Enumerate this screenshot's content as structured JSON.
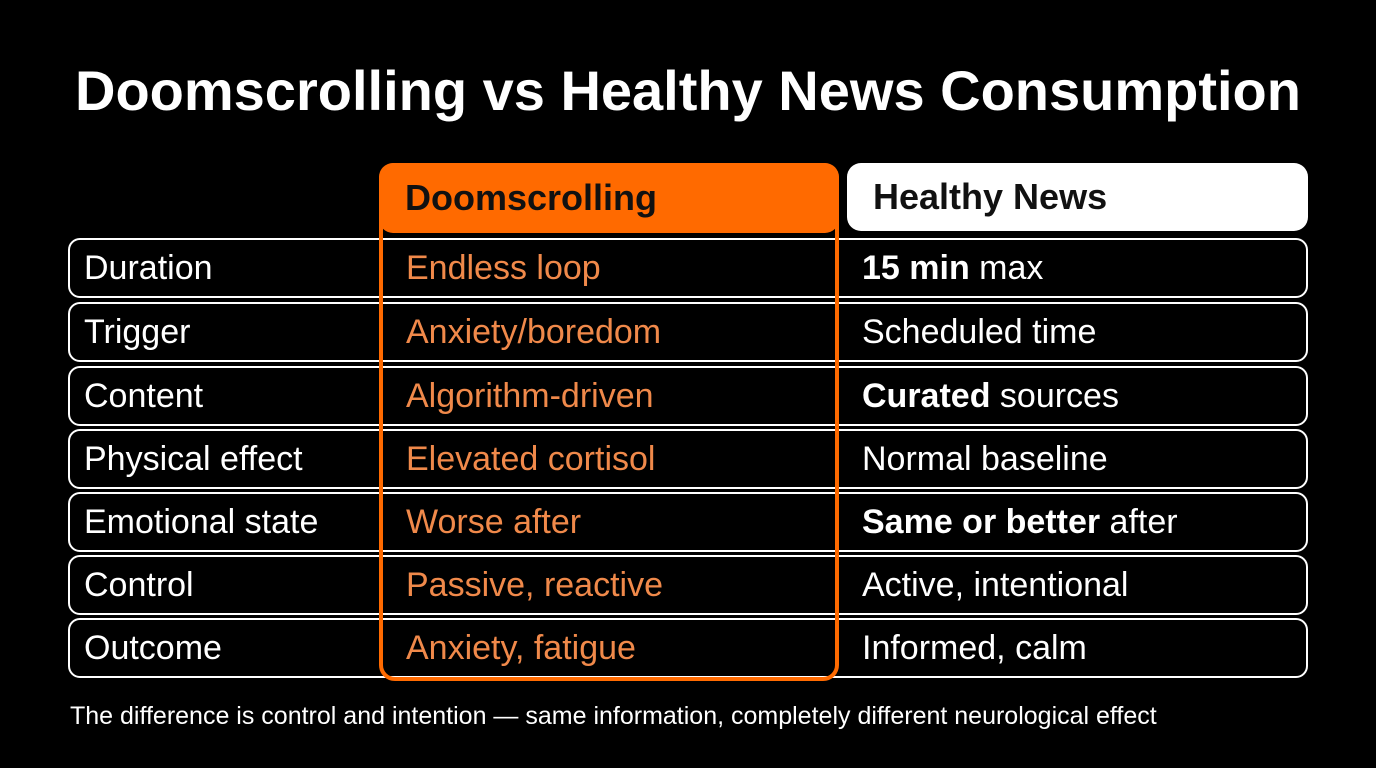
{
  "title": "Doomscrolling vs Healthy News Consumption",
  "headers": {
    "doom": "Doomscrolling",
    "healthy": "Healthy News"
  },
  "rows": [
    {
      "label": "Duration",
      "doom": "Endless loop",
      "healthy_bold": "15 min",
      "healthy_rest": " max"
    },
    {
      "label": "Trigger",
      "doom": "Anxiety/boredom",
      "healthy_bold": "",
      "healthy_rest": "Scheduled time"
    },
    {
      "label": "Content",
      "doom": "Algorithm-driven",
      "healthy_bold": "Curated",
      "healthy_rest": " sources"
    },
    {
      "label": "Physical effect",
      "doom": "Elevated cortisol",
      "healthy_bold": "",
      "healthy_rest": "Normal baseline"
    },
    {
      "label": "Emotional state",
      "doom": "Worse after",
      "healthy_bold": "Same or better",
      "healthy_rest": " after"
    },
    {
      "label": "Control",
      "doom": "Passive, reactive",
      "healthy_bold": "",
      "healthy_rest": "Active, intentional"
    },
    {
      "label": "Outcome",
      "doom": "Anxiety, fatigue",
      "healthy_bold": "",
      "healthy_rest": "Informed, calm"
    }
  ],
  "footer": "The difference is control and intention — same information, completely different neurological effect",
  "colors": {
    "accent": "#ff6a00",
    "accent_text": "#f0894a",
    "background": "#000000",
    "text": "#ffffff"
  }
}
